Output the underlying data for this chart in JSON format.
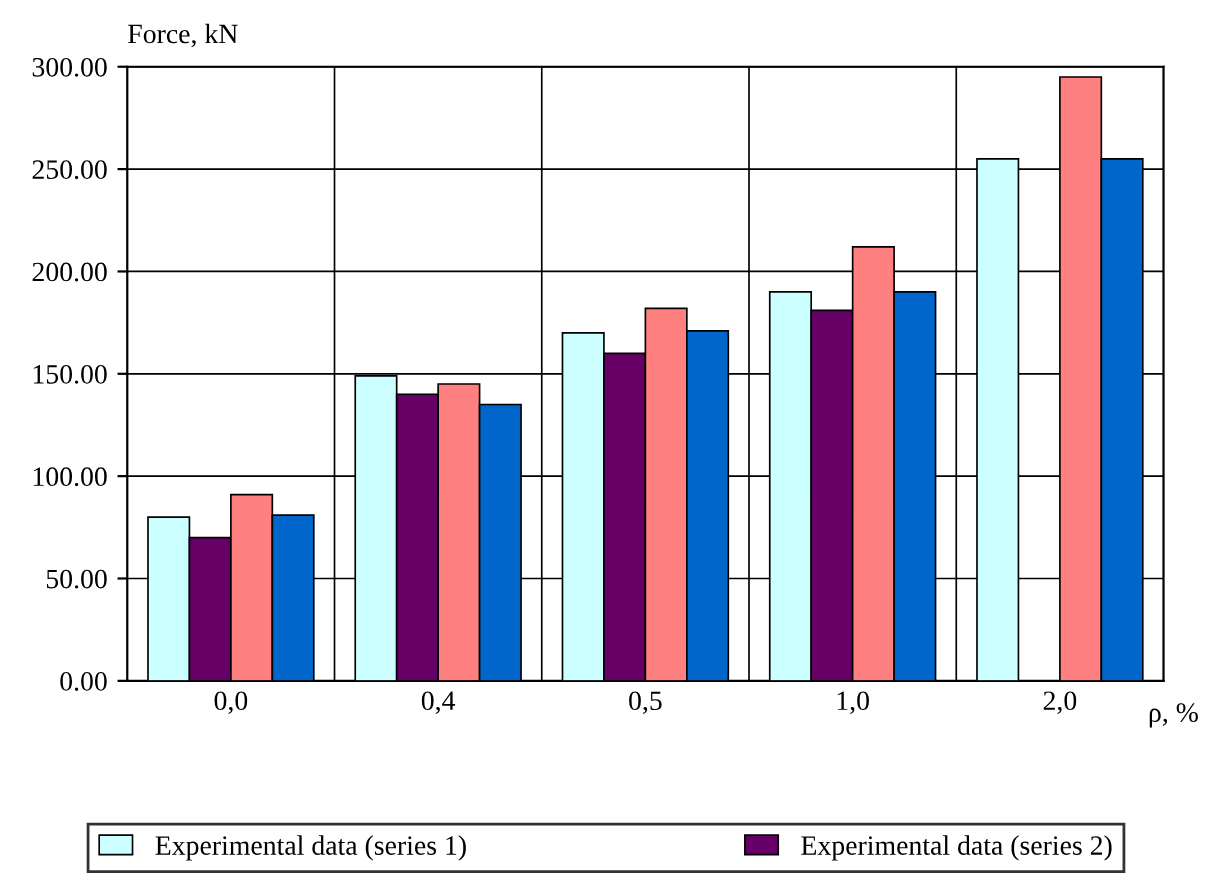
{
  "chart_data": {
    "type": "bar",
    "ylabel": "Force, kN",
    "xlabel": "ρ, %",
    "categories": [
      "0,0",
      "0,4",
      "0,5",
      "1,0",
      "2,0"
    ],
    "series": [
      {
        "name": "Experimental data (series 1)",
        "color": "#ccffff",
        "values": [
          80,
          149,
          170,
          190,
          255
        ]
      },
      {
        "name": "Experimental data (series 2)",
        "color": "#660066",
        "values": [
          70,
          140,
          160,
          181,
          null
        ]
      },
      {
        "color": "#ff8080",
        "values": [
          91,
          145,
          182,
          212,
          295
        ]
      },
      {
        "color": "#0066cc",
        "values": [
          81,
          135,
          171,
          190,
          255
        ]
      }
    ],
    "ylim": [
      0,
      300
    ],
    "yticks": [
      {
        "value": 0,
        "label": "0.00"
      },
      {
        "value": 50,
        "label": "50.00"
      },
      {
        "value": 100,
        "label": "100.00"
      },
      {
        "value": 150,
        "label": "150.00"
      },
      {
        "value": 200,
        "label": "200.00"
      },
      {
        "value": 250,
        "label": "250.00"
      },
      {
        "value": 300,
        "label": "300.00"
      }
    ],
    "grid": true,
    "legend": "bottom"
  }
}
